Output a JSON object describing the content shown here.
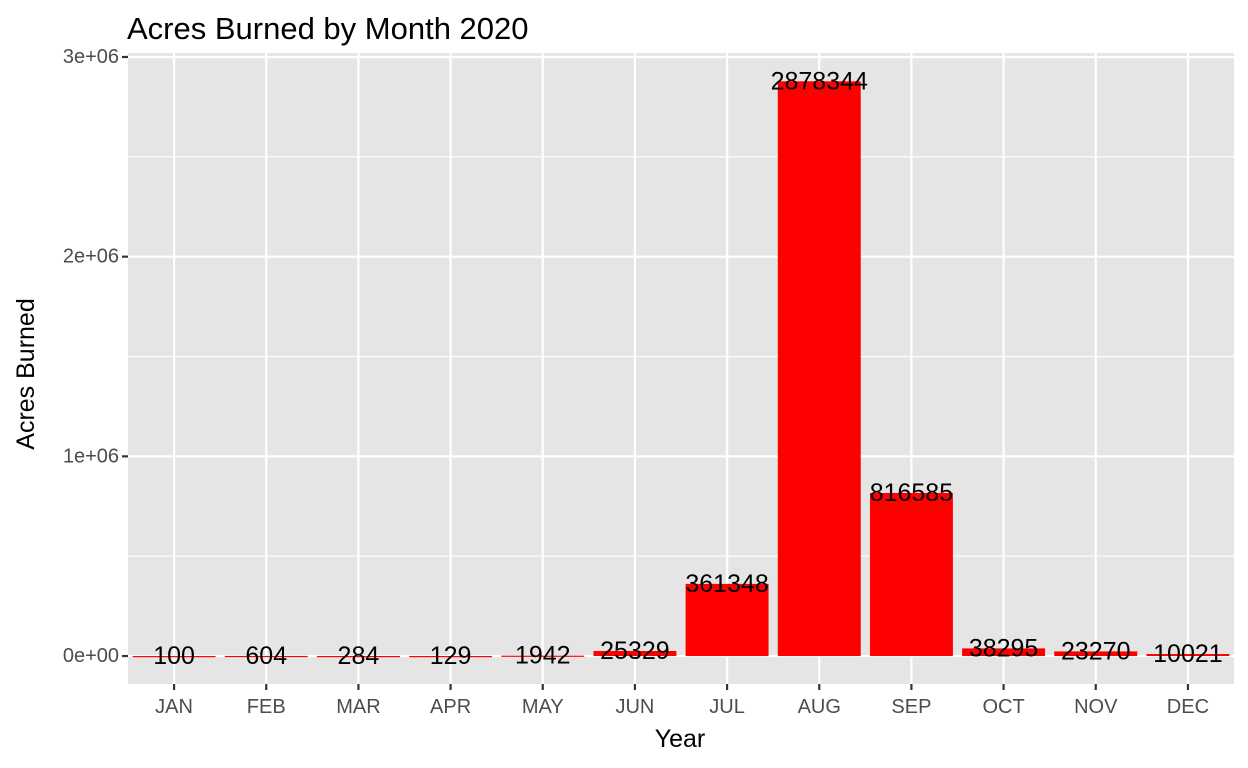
{
  "chart_data": {
    "type": "bar",
    "title": "Acres Burned by Month 2020",
    "xlabel": "Year",
    "ylabel": "Acres Burned",
    "categories": [
      "JAN",
      "FEB",
      "MAR",
      "APR",
      "MAY",
      "JUN",
      "JUL",
      "AUG",
      "SEP",
      "OCT",
      "NOV",
      "DEC"
    ],
    "values": [
      100,
      604,
      284,
      129,
      1942,
      25329,
      361348,
      2878344,
      816585,
      38295,
      23270,
      10021
    ],
    "data_labels": [
      "100",
      "604",
      "284",
      "129",
      "1942",
      "25329",
      "361348",
      "2878344",
      "816585",
      "38295",
      "23270",
      "10021"
    ],
    "ylim": [
      -140000,
      3020000
    ],
    "yticks": [
      0,
      1000000,
      2000000,
      3000000
    ],
    "ytick_labels": [
      "0e+00",
      "1e+06",
      "2e+06",
      "3e+06"
    ],
    "grid": true,
    "legend": "none",
    "colors": {
      "bar": "#ff0000",
      "panel": "#e5e5e5",
      "grid": "#ffffff",
      "tick_text": "#4d4d4d",
      "text": "#000000"
    }
  }
}
